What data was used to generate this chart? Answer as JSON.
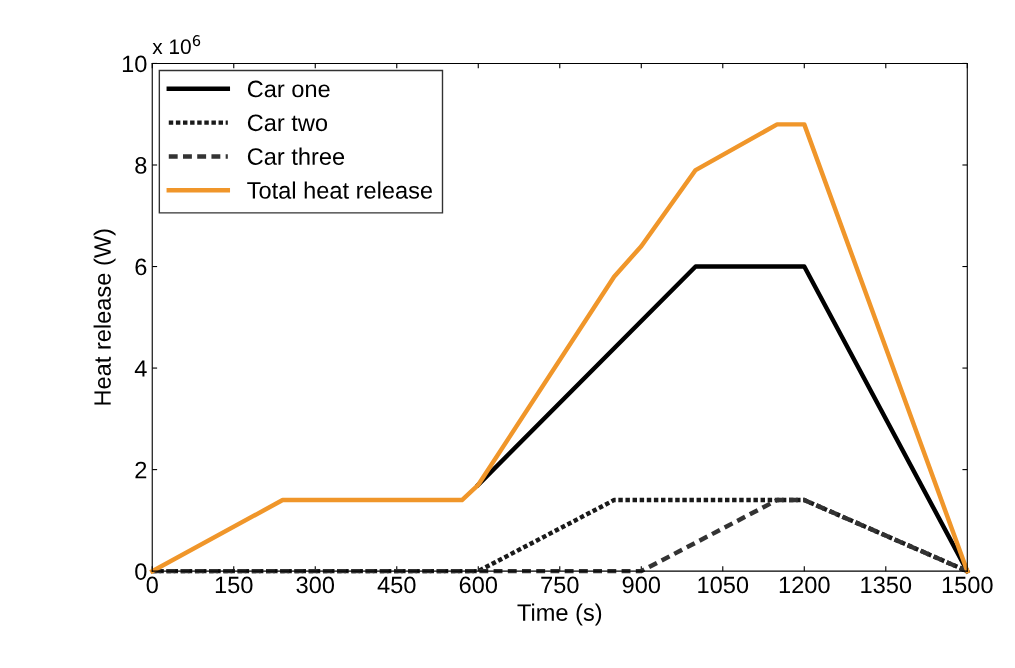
{
  "chart_data": {
    "type": "line",
    "xlabel": "Time (s)",
    "ylabel": "Heat release (W)",
    "annotations": [
      "x 10$^{6}$"
    ],
    "xlim": [
      0,
      1500
    ],
    "xticks": [
      0,
      150,
      300,
      450,
      600,
      750,
      900,
      1050,
      1200,
      1350,
      1500
    ],
    "ylim": [
      0,
      10
    ],
    "yticks": [
      0,
      2,
      4,
      6,
      8,
      10
    ],
    "grid": false,
    "legend": "top left",
    "marker": "none",
    "series": [
      {
        "name": "Car one",
        "color": "#000000",
        "line_style": "solid",
        "x": [
          600,
          1000,
          1200,
          1500
        ],
        "values": [
          1.7,
          6.0,
          6.0,
          0
        ]
      },
      {
        "name": "Car two",
        "color": "#1a1a1a",
        "line_style": "dotted",
        "x": [
          0,
          600,
          850,
          1200,
          1500
        ],
        "values": [
          0,
          0,
          1.4,
          1.4,
          0
        ]
      },
      {
        "name": "Car three",
        "color": "#333333",
        "line_style": "dashed",
        "x": [
          0,
          900,
          1150,
          1200,
          1500
        ],
        "values": [
          0,
          0,
          1.4,
          1.4,
          0
        ]
      },
      {
        "name": "Total heat release",
        "color": "#f0962a",
        "line_style": "solid",
        "x": [
          0,
          240,
          570,
          600,
          850,
          900,
          1000,
          1150,
          1200,
          1500
        ],
        "values": [
          0,
          1.4,
          1.4,
          1.7,
          5.8,
          6.4,
          7.9,
          8.8,
          8.8,
          0
        ]
      }
    ]
  }
}
